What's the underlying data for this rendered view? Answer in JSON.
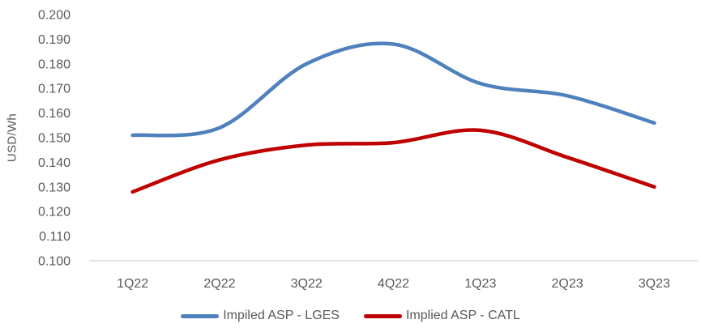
{
  "chart_data": {
    "type": "line",
    "title": "",
    "xlabel": "",
    "ylabel": "USD/Wh",
    "categories": [
      "1Q22",
      "2Q22",
      "3Q22",
      "4Q22",
      "1Q23",
      "2Q23",
      "3Q23"
    ],
    "series": [
      {
        "name": "Impiled ASP - LGES",
        "color": "#4F81BD",
        "values": [
          0.151,
          0.154,
          0.18,
          0.188,
          0.172,
          0.167,
          0.156
        ]
      },
      {
        "name": "Implied ASP - CATL",
        "color": "#C00000",
        "values": [
          0.128,
          0.141,
          0.147,
          0.148,
          0.153,
          0.142,
          0.13
        ]
      }
    ],
    "ylim": [
      0.1,
      0.2
    ],
    "ytick_step": 0.01,
    "ytick_decimals": 3,
    "grid": false,
    "smooth_lines": true,
    "legend_position": "bottom-center",
    "axis_line_color": "#DCDCDC",
    "text_color": "#595959",
    "line_width": 4.5
  }
}
